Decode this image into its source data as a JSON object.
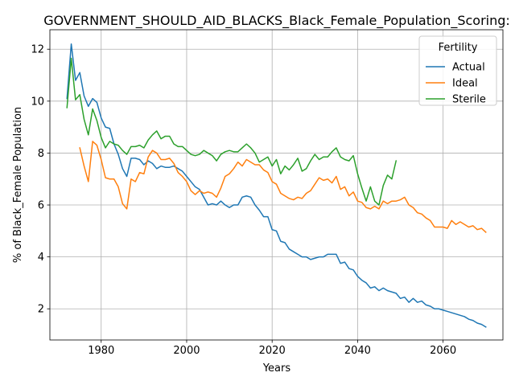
{
  "chart_data": {
    "type": "line",
    "title": "GOVERNMENT_SHOULD_AID_BLACKS_Black_Female_Population_Scoring:",
    "xlabel": "Years",
    "ylabel": "% of Black_Female Population",
    "xlim": [
      1968,
      2074
    ],
    "ylim": [
      0.8,
      12.75
    ],
    "xticks": [
      1980,
      2000,
      2020,
      2040,
      2060
    ],
    "yticks": [
      2,
      4,
      6,
      8,
      10,
      12
    ],
    "grid": true,
    "legend": {
      "title": "Fertility",
      "placement": "top-right"
    },
    "series": [
      {
        "name": "Actual",
        "color": "#1f77b4",
        "x": [
          1972,
          1973,
          1974,
          1975,
          1976,
          1977,
          1978,
          1979,
          1980,
          1981,
          1982,
          1983,
          1984,
          1985,
          1986,
          1987,
          1988,
          1989,
          1990,
          1991,
          1992,
          1993,
          1994,
          1995,
          1996,
          1997,
          1998,
          1999,
          2000,
          2001,
          2002,
          2003,
          2004,
          2005,
          2006,
          2007,
          2008,
          2009,
          2010,
          2011,
          2012,
          2013,
          2014,
          2015,
          2016,
          2017,
          2018,
          2019,
          2020,
          2021,
          2022,
          2023,
          2024,
          2025,
          2026,
          2027,
          2028,
          2029,
          2030,
          2031,
          2032,
          2033,
          2034,
          2035,
          2036,
          2037,
          2038,
          2039,
          2040,
          2041,
          2042,
          2043,
          2044,
          2045,
          2046,
          2047,
          2048,
          2049,
          2050,
          2051,
          2052,
          2053,
          2054,
          2055,
          2056,
          2057,
          2058,
          2059,
          2060,
          2061,
          2062,
          2063,
          2064,
          2065,
          2066,
          2067,
          2068,
          2069,
          2070
        ],
        "values": [
          10.1,
          12.2,
          10.8,
          11.1,
          10.2,
          9.8,
          10.1,
          9.95,
          9.35,
          9.0,
          8.95,
          8.35,
          7.95,
          7.4,
          7.1,
          7.8,
          7.8,
          7.75,
          7.55,
          7.7,
          7.6,
          7.4,
          7.5,
          7.45,
          7.45,
          7.5,
          7.4,
          7.3,
          7.1,
          6.9,
          6.7,
          6.6,
          6.3,
          6.0,
          6.05,
          6.0,
          6.15,
          6.0,
          5.9,
          6.0,
          6.0,
          6.3,
          6.35,
          6.3,
          6.0,
          5.8,
          5.55,
          5.55,
          5.05,
          5.0,
          4.6,
          4.55,
          4.3,
          4.2,
          4.1,
          4.0,
          4.0,
          3.9,
          3.95,
          4.0,
          4.0,
          4.1,
          4.1,
          4.1,
          3.75,
          3.8,
          3.55,
          3.5,
          3.25,
          3.1,
          3.0,
          2.8,
          2.85,
          2.7,
          2.8,
          2.7,
          2.65,
          2.6,
          2.4,
          2.45,
          2.25,
          2.4,
          2.25,
          2.3,
          2.15,
          2.1,
          2.0,
          2.0,
          1.95,
          1.9,
          1.85,
          1.8,
          1.75,
          1.7,
          1.6,
          1.55,
          1.45,
          1.4,
          1.3
        ]
      },
      {
        "name": "Ideal",
        "color": "#ff7f0e",
        "x": [
          1975,
          1976,
          1977,
          1978,
          1979,
          1980,
          1981,
          1982,
          1983,
          1984,
          1985,
          1986,
          1987,
          1988,
          1989,
          1990,
          1991,
          1992,
          1993,
          1994,
          1995,
          1996,
          1997,
          1998,
          1999,
          2000,
          2001,
          2002,
          2003,
          2004,
          2005,
          2006,
          2007,
          2008,
          2009,
          2010,
          2011,
          2012,
          2013,
          2014,
          2015,
          2016,
          2017,
          2018,
          2019,
          2020,
          2021,
          2022,
          2023,
          2024,
          2025,
          2026,
          2027,
          2028,
          2029,
          2030,
          2031,
          2032,
          2033,
          2034,
          2035,
          2036,
          2037,
          2038,
          2039,
          2040,
          2041,
          2042,
          2043,
          2044,
          2045,
          2046,
          2047,
          2048,
          2049,
          2050,
          2051,
          2052,
          2053,
          2054,
          2055,
          2056,
          2057,
          2058,
          2059,
          2060,
          2061,
          2062,
          2063,
          2064,
          2065,
          2066,
          2067,
          2068,
          2069,
          2070
        ],
        "values": [
          8.2,
          7.5,
          6.9,
          8.45,
          8.3,
          7.75,
          7.05,
          7.0,
          7.0,
          6.7,
          6.05,
          5.85,
          7.0,
          6.9,
          7.25,
          7.2,
          7.85,
          8.1,
          8.0,
          7.75,
          7.75,
          7.8,
          7.6,
          7.25,
          7.1,
          6.9,
          6.55,
          6.4,
          6.55,
          6.45,
          6.5,
          6.45,
          6.3,
          6.65,
          7.1,
          7.2,
          7.4,
          7.65,
          7.5,
          7.75,
          7.65,
          7.55,
          7.55,
          7.35,
          7.25,
          6.9,
          6.8,
          6.45,
          6.35,
          6.25,
          6.2,
          6.3,
          6.25,
          6.45,
          6.55,
          6.8,
          7.05,
          6.95,
          7.0,
          6.85,
          7.1,
          6.6,
          6.7,
          6.35,
          6.5,
          6.15,
          6.1,
          5.9,
          5.85,
          5.95,
          5.85,
          6.15,
          6.05,
          6.15,
          6.15,
          6.2,
          6.3,
          6.0,
          5.9,
          5.7,
          5.65,
          5.5,
          5.4,
          5.15,
          5.15,
          5.15,
          5.1,
          5.4,
          5.25,
          5.35,
          5.25,
          5.15,
          5.2,
          5.05,
          5.1,
          4.95
        ]
      },
      {
        "name": "Sterile",
        "color": "#2ca02c",
        "x": [
          1972,
          1973,
          1974,
          1975,
          1976,
          1977,
          1978,
          1979,
          1980,
          1981,
          1982,
          1983,
          1984,
          1985,
          1986,
          1987,
          1988,
          1989,
          1990,
          1991,
          1992,
          1993,
          1994,
          1995,
          1996,
          1997,
          1998,
          1999,
          2000,
          2001,
          2002,
          2003,
          2004,
          2005,
          2006,
          2007,
          2008,
          2009,
          2010,
          2011,
          2012,
          2013,
          2014,
          2015,
          2016,
          2017,
          2018,
          2019,
          2020,
          2021,
          2022,
          2023,
          2024,
          2025,
          2026,
          2027,
          2028,
          2029,
          2030,
          2031,
          2032,
          2033,
          2034,
          2035,
          2036,
          2037,
          2038,
          2039,
          2040,
          2041,
          2042,
          2043,
          2044,
          2045,
          2046,
          2047,
          2048,
          2049
        ],
        "values": [
          9.75,
          11.65,
          10.05,
          10.25,
          9.3,
          8.7,
          9.7,
          9.25,
          8.6,
          8.2,
          8.45,
          8.35,
          8.3,
          8.1,
          7.95,
          8.25,
          8.25,
          8.3,
          8.2,
          8.5,
          8.7,
          8.85,
          8.55,
          8.65,
          8.65,
          8.35,
          8.25,
          8.25,
          8.1,
          7.95,
          7.9,
          7.95,
          8.1,
          8.0,
          7.9,
          7.7,
          7.95,
          8.05,
          8.1,
          8.05,
          8.05,
          8.2,
          8.35,
          8.2,
          8.0,
          7.65,
          7.75,
          7.85,
          7.5,
          7.75,
          7.2,
          7.5,
          7.35,
          7.55,
          7.8,
          7.3,
          7.4,
          7.7,
          7.95,
          7.75,
          7.85,
          7.85,
          8.05,
          8.2,
          7.85,
          7.75,
          7.7,
          7.9,
          7.2,
          6.65,
          6.15,
          6.7,
          6.15,
          6.0,
          6.75,
          7.15,
          7.0,
          7.7
        ]
      }
    ]
  }
}
